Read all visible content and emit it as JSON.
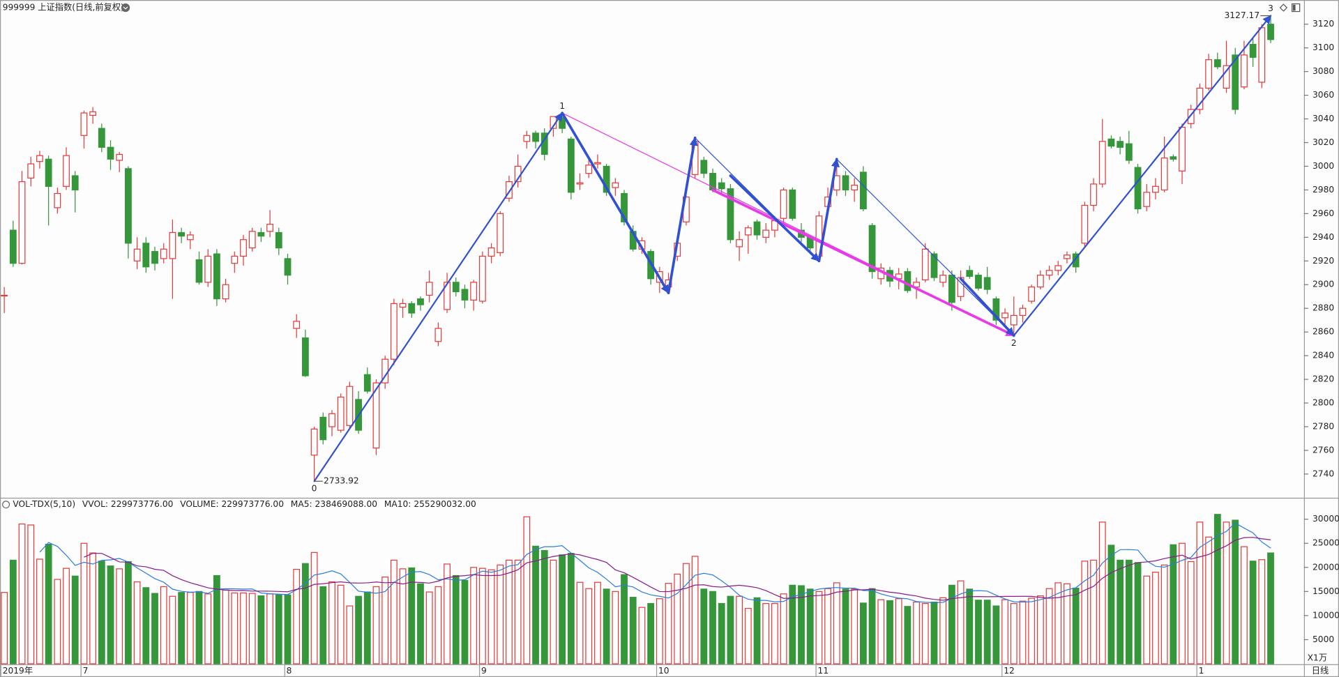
{
  "header": {
    "title": "999999 上证指数(日线,前复权)"
  },
  "chart_data": [
    {
      "type": "candlestick",
      "categories": [
        "2019年",
        null,
        null,
        null,
        null,
        null,
        null,
        null,
        null,
        "7",
        null,
        null,
        null,
        null,
        null,
        null,
        null,
        null,
        null,
        null,
        null,
        null,
        null,
        null,
        null,
        null,
        null,
        null,
        null,
        null,
        null,
        null,
        "8",
        null,
        null,
        null,
        null,
        null,
        null,
        null,
        null,
        null,
        null,
        null,
        null,
        null,
        null,
        null,
        null,
        null,
        null,
        null,
        null,
        null,
        "9",
        null,
        null,
        null,
        null,
        null,
        null,
        null,
        null,
        null,
        null,
        null,
        null,
        null,
        null,
        null,
        null,
        null,
        null,
        null,
        "10",
        null,
        null,
        null,
        null,
        null,
        null,
        null,
        null,
        null,
        null,
        null,
        null,
        null,
        null,
        null,
        null,
        null,
        "11",
        null,
        null,
        null,
        null,
        null,
        null,
        null,
        null,
        null,
        null,
        null,
        null,
        null,
        null,
        null,
        null,
        null,
        null,
        null,
        null,
        "12",
        null,
        null,
        null,
        null,
        null,
        null,
        null,
        null,
        null,
        null,
        null,
        null,
        null,
        null,
        null,
        null,
        null,
        null,
        null,
        null,
        null,
        "1",
        null,
        null,
        null,
        null,
        null,
        null,
        null,
        null
      ],
      "open": [
        2891,
        2946,
        2918,
        2990,
        3004,
        3006,
        2965,
        2983,
        2992,
        3026,
        3043,
        3032,
        3016,
        3005,
        2998,
        2920,
        2935,
        2928,
        2922,
        2922,
        2944,
        2938,
        2921,
        2902,
        2926,
        2888,
        2918,
        2924,
        2931,
        2944,
        2945,
        2944,
        2922,
        2863,
        2855,
        2756,
        2788,
        2780,
        2777,
        2781,
        2803,
        2824,
        2762,
        2817,
        2837,
        2881,
        2884,
        2888,
        2891,
        2852,
        2879,
        2902,
        2896,
        2887,
        2886,
        2924,
        2927,
        2973,
        2987,
        3021,
        3028,
        3028,
        3032,
        3041,
        3023,
        2985,
        2994,
        3002,
        3000,
        2982,
        2977,
        2945,
        2930,
        2928,
        2902,
        2898,
        2924,
        2953,
        2993,
        3005,
        2994,
        2986,
        2981,
        2932,
        2942,
        2953,
        2940,
        2946,
        2956,
        2980,
        2946,
        2940,
        2924,
        2966,
        2980,
        2992,
        2980,
        2995,
        2950,
        2905,
        2912,
        2905,
        2911,
        2898,
        2904,
        2926,
        2902,
        2908,
        2890,
        2912,
        2908,
        2906,
        2888,
        2872,
        2866,
        2874,
        2886,
        2898,
        2908,
        2912,
        2922,
        2926,
        2935,
        2967,
        2985,
        3023,
        3021,
        3019,
        2999,
        2966,
        2978,
        2980,
        3008,
        2996,
        3036,
        3048,
        3066,
        3090,
        3066,
        3094,
        3067,
        3103,
        3071,
        3120
      ],
      "high": [
        2898,
        2954,
        2996,
        3008,
        3013,
        3009,
        2982,
        3016,
        2996,
        3047,
        3050,
        3036,
        3022,
        3012,
        3000,
        2940,
        2940,
        2932,
        2935,
        2955,
        2948,
        2945,
        2928,
        2930,
        2930,
        2905,
        2928,
        2942,
        2948,
        2948,
        2963,
        2948,
        2926,
        2875,
        2862,
        2780,
        2792,
        2794,
        2808,
        2818,
        2810,
        2830,
        2820,
        2840,
        2888,
        2888,
        2886,
        2890,
        2912,
        2868,
        2910,
        2906,
        2900,
        2904,
        2928,
        2935,
        2962,
        2992,
        3010,
        3030,
        3030,
        3032,
        3042,
        3045,
        3025,
        2994,
        3006,
        3010,
        3002,
        2990,
        2980,
        2950,
        2940,
        2930,
        2915,
        2910,
        2938,
        2976,
        3024,
        3008,
        2998,
        2990,
        2985,
        2945,
        2950,
        2955,
        2952,
        2958,
        2982,
        2982,
        2952,
        2942,
        2962,
        2982,
        3000,
        2996,
        2990,
        3000,
        2952,
        2918,
        2915,
        2914,
        2914,
        2906,
        2935,
        2928,
        2912,
        2912,
        2912,
        2916,
        2910,
        2915,
        2890,
        2880,
        2890,
        2883,
        2900,
        2912,
        2916,
        2920,
        2928,
        2928,
        2970,
        2990,
        3040,
        3026,
        3025,
        3030,
        3002,
        2985,
        2990,
        3025,
        3010,
        3036,
        3052,
        3070,
        3095,
        3096,
        3106,
        3100,
        3106,
        3108,
        3120,
        3127.17
      ],
      "low": [
        2876,
        2915,
        2917,
        2983,
        2998,
        2950,
        2960,
        2980,
        2961,
        3015,
        3036,
        3012,
        2997,
        2995,
        2922,
        2913,
        2910,
        2912,
        2918,
        2888,
        2935,
        2930,
        2900,
        2898,
        2882,
        2885,
        2910,
        2916,
        2928,
        2936,
        2940,
        2925,
        2900,
        2855,
        2822,
        2733.92,
        2765,
        2772,
        2775,
        2778,
        2774,
        2808,
        2756,
        2812,
        2832,
        2872,
        2872,
        2878,
        2885,
        2848,
        2876,
        2890,
        2880,
        2878,
        2884,
        2918,
        2924,
        2970,
        2982,
        3015,
        3015,
        3005,
        3025,
        3028,
        2972,
        2980,
        2990,
        2998,
        2975,
        2975,
        2950,
        2928,
        2926,
        2900,
        2893,
        2893,
        2920,
        2950,
        2990,
        2990,
        2978,
        2976,
        2935,
        2920,
        2926,
        2938,
        2935,
        2940,
        2952,
        2954,
        2936,
        2928,
        2920,
        2960,
        2975,
        2975,
        2970,
        2962,
        2905,
        2900,
        2898,
        2896,
        2893,
        2888,
        2902,
        2903,
        2898,
        2878,
        2886,
        2905,
        2895,
        2892,
        2866,
        2865,
        2857,
        2868,
        2884,
        2896,
        2904,
        2908,
        2918,
        2910,
        2932,
        2962,
        2982,
        3015,
        3010,
        3002,
        2960,
        2962,
        2972,
        2978,
        3004,
        2985,
        3032,
        3044,
        3064,
        3082,
        3062,
        3044,
        3065,
        3084,
        3066,
        3104
      ],
      "close": [
        2891,
        2918,
        2987,
        3002,
        3009,
        2983,
        2977,
        3009,
        2980,
        3045,
        3046,
        3016,
        3006,
        3010,
        2935,
        2930,
        2915,
        2918,
        2930,
        2944,
        2941,
        2942,
        2902,
        2924,
        2888,
        2900,
        2924,
        2938,
        2945,
        2941,
        2951,
        2931,
        2908,
        2869,
        2823,
        2778,
        2769,
        2791,
        2805,
        2814,
        2777,
        2810,
        2817,
        2837,
        2884,
        2884,
        2876,
        2883,
        2902,
        2863,
        2902,
        2894,
        2887,
        2902,
        2924,
        2931,
        2960,
        2987,
        3000,
        3026,
        3021,
        3010,
        3042,
        3032,
        2978,
        2986,
        3001,
        3003,
        2978,
        2986,
        2953,
        2930,
        2937,
        2905,
        2911,
        2904,
        2935,
        2974,
        3021,
        2994,
        2980,
        2981,
        2938,
        2938,
        2948,
        2942,
        2946,
        2954,
        2980,
        2956,
        2940,
        2931,
        2958,
        2974,
        2992,
        2980,
        2984,
        2964,
        2911,
        2914,
        2903,
        2909,
        2895,
        2902,
        2930,
        2906,
        2908,
        2885,
        2906,
        2907,
        2897,
        2896,
        2870,
        2876,
        2874,
        2880,
        2898,
        2908,
        2912,
        2916,
        2925,
        2915,
        2967,
        2985,
        3021,
        3017,
        3016,
        3005,
        2964,
        2978,
        2983,
        3007,
        3006,
        3033,
        3048,
        3066,
        3090,
        3084,
        3085,
        3048,
        3094,
        3092,
        3117,
        3107
      ],
      "up_color": "#e23b3b",
      "down_color": "#35963a",
      "ylim": [
        2720,
        3139
      ],
      "yticks": [
        2740,
        2760,
        2780,
        2800,
        2820,
        2840,
        2860,
        2880,
        2900,
        2920,
        2940,
        2960,
        2980,
        3000,
        3020,
        3040,
        3060,
        3080,
        3100,
        3120
      ],
      "waves": [
        {
          "label": "0",
          "x": 35,
          "price": 2733.92,
          "show_price": true
        },
        {
          "label": "1",
          "x": 63,
          "price": 3045,
          "show_price": false
        },
        {
          "label": "2",
          "x": 114,
          "price": 2857,
          "show_price": false
        },
        {
          "label": "3",
          "x": 143,
          "price": 3127.17,
          "show_price": true
        }
      ],
      "lines": [
        {
          "from": [
            35,
            2733.92
          ],
          "to": [
            63,
            3045
          ],
          "color": "#3150d2",
          "weight": "medium",
          "arrow": true
        },
        {
          "from": [
            63,
            3045
          ],
          "to": [
            114,
            2857
          ],
          "color": "#e83ae8",
          "weight": "thin",
          "arrow": false
        },
        {
          "from": [
            80,
            2980
          ],
          "to": [
            114,
            2857
          ],
          "color": "#e83ae8",
          "weight": "thick",
          "arrow": true
        },
        {
          "from": [
            63,
            3045
          ],
          "to": [
            75,
            2893
          ],
          "color": "#3150d2",
          "weight": "thick",
          "arrow": true
        },
        {
          "from": [
            75,
            2893
          ],
          "to": [
            78,
            3024
          ],
          "color": "#3150d2",
          "weight": "thick",
          "arrow": true
        },
        {
          "from": [
            78,
            3024
          ],
          "to": [
            92,
            2920
          ],
          "color": "#3150d2",
          "weight": "thin",
          "arrow": false
        },
        {
          "from": [
            82,
            2992
          ],
          "to": [
            92,
            2920
          ],
          "color": "#3150d2",
          "weight": "thick",
          "arrow": true
        },
        {
          "from": [
            92,
            2920
          ],
          "to": [
            94,
            3006
          ],
          "color": "#3150d2",
          "weight": "thick",
          "arrow": true
        },
        {
          "from": [
            94,
            3006
          ],
          "to": [
            114,
            2857
          ],
          "color": "#3150d2",
          "weight": "thin",
          "arrow": false
        },
        {
          "from": [
            108,
            2905
          ],
          "to": [
            114,
            2857
          ],
          "color": "#3150d2",
          "weight": "thick",
          "arrow": true
        },
        {
          "from": [
            114,
            2857
          ],
          "to": [
            143,
            3127.17
          ],
          "color": "#3150d2",
          "weight": "medium",
          "arrow": true
        }
      ]
    },
    {
      "type": "volume",
      "legend": [
        {
          "text": "VOL-TDX(5,10)",
          "color": "#222222"
        },
        {
          "text": "VVOL: 229973776.00",
          "color": "#222222"
        },
        {
          "text": "VOLUME: 229973776.00",
          "color": "#1f6fd0"
        },
        {
          "text": "MA5: 238469088.00",
          "color": "#1f6fd0"
        },
        {
          "text": "MA10: 255290032.00",
          "color": "#a0208f"
        }
      ],
      "values": [
        14800,
        21500,
        29000,
        28800,
        21700,
        24800,
        17500,
        19800,
        18200,
        25000,
        23000,
        21300,
        20300,
        19700,
        21200,
        17000,
        15800,
        14600,
        16000,
        14000,
        14800,
        14800,
        15000,
        14500,
        18300,
        15300,
        14700,
        14700,
        14600,
        14100,
        14500,
        14300,
        14300,
        19600,
        20800,
        23100,
        16000,
        17000,
        16300,
        12000,
        14000,
        14900,
        16000,
        18000,
        21500,
        19700,
        19900,
        16600,
        14900,
        16000,
        20700,
        18300,
        17300,
        20000,
        19800,
        19500,
        20500,
        21500,
        21500,
        30500,
        24400,
        23500,
        21500,
        22600,
        22900,
        16900,
        15600,
        16900,
        15500,
        15000,
        18500,
        13800,
        11700,
        12500,
        13500,
        16700,
        18600,
        20800,
        22300,
        15500,
        15000,
        12500,
        14000,
        14000,
        11500,
        13700,
        12500,
        12500,
        14500,
        16300,
        16200,
        15500,
        15000,
        15600,
        16800,
        15500,
        15500,
        12600,
        15600,
        13300,
        13100,
        13500,
        11900,
        12800,
        12500,
        12800,
        13700,
        16300,
        17200,
        15500,
        13200,
        13200,
        12000,
        13300,
        12500,
        13000,
        13600,
        14100,
        15600,
        16800,
        16600,
        15700,
        21300,
        21500,
        29400,
        24600,
        21500,
        21500,
        21000,
        18200,
        19000,
        20500,
        24700,
        25000,
        21200,
        29400,
        26300,
        31000,
        29400,
        29800,
        24300,
        21300,
        21600,
        22997.38
      ],
      "ma": [
        {
          "period": 5,
          "color": "#2a7ee0"
        },
        {
          "period": 10,
          "color": "#8b1a8b"
        }
      ],
      "ylim": [
        0,
        31800
      ],
      "yticks": [
        5000,
        10000,
        15000,
        20000,
        25000,
        30000
      ],
      "unit_label": "X1万"
    }
  ],
  "footer": {
    "period": "日线"
  }
}
